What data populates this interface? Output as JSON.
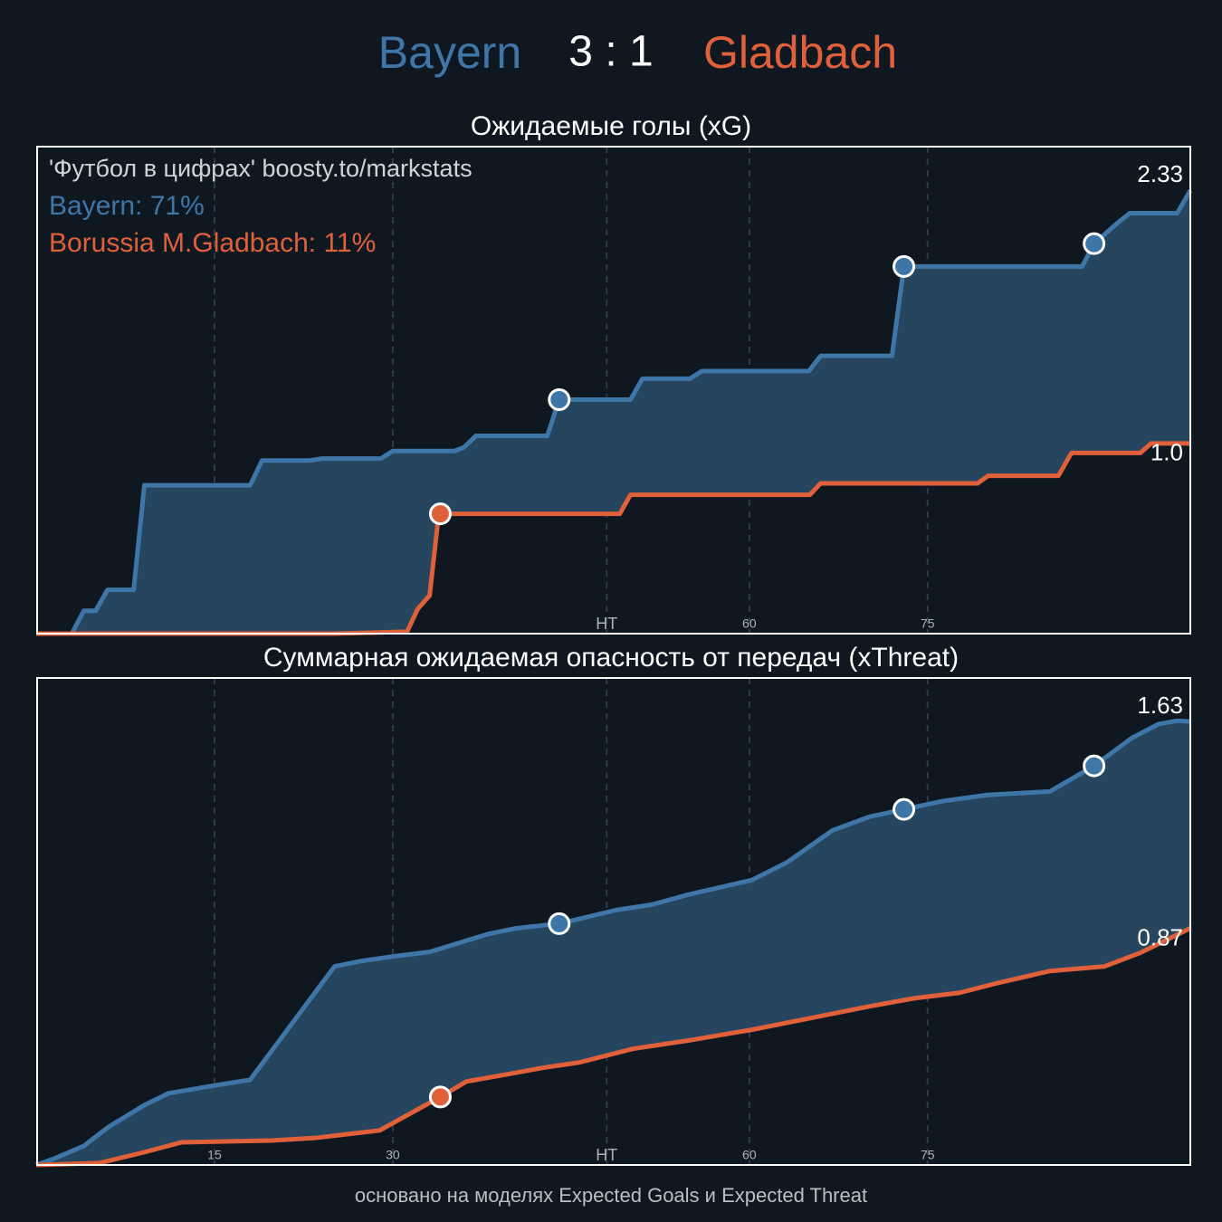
{
  "header": {
    "home": "Bayern",
    "score": "3 : 1",
    "away": "Gladbach",
    "home_color": "#3f76a8",
    "away_color": "#e0603a"
  },
  "chart_data": [
    {
      "type": "line",
      "title": "Ожидаемые голы (xG)",
      "annotations": [
        {
          "text": "'Футбол в цифрах' boosty.to/markstats",
          "color": "#cfd4d9"
        },
        {
          "text": "Bayern: 71%",
          "color": "#3f76a8"
        },
        {
          "text": "Borussia M.Gladbach: 11%",
          "color": "#e0603a"
        }
      ],
      "xlim": [
        0,
        97.1
      ],
      "ylim": [
        0,
        2.56
      ],
      "xticks": [
        15,
        30,
        {
          "value": 48,
          "label": "HT"
        },
        60,
        75
      ],
      "grid": true,
      "fill_between": true,
      "series": [
        {
          "name": "Bayern",
          "color": "#3f76a8",
          "end_label": "2.33",
          "x": [
            0,
            3,
            4,
            5,
            6,
            8.2,
            9.1,
            18,
            19,
            23,
            24,
            29,
            30,
            35.2,
            36,
            37,
            43,
            44,
            50,
            51,
            55,
            56,
            65,
            66,
            72,
            73,
            88,
            89,
            91,
            92,
            96,
            97.1
          ],
          "values": [
            0,
            0,
            0.12,
            0.12,
            0.23,
            0.23,
            0.78,
            0.78,
            0.91,
            0.91,
            0.92,
            0.92,
            0.96,
            0.96,
            0.98,
            1.04,
            1.04,
            1.23,
            1.23,
            1.34,
            1.34,
            1.38,
            1.38,
            1.46,
            1.46,
            1.93,
            1.93,
            2.05,
            2.16,
            2.21,
            2.21,
            2.33
          ],
          "goals": [
            44,
            73,
            89
          ]
        },
        {
          "name": "Gladbach",
          "color": "#e0603a",
          "end_label": "1.0",
          "x": [
            0,
            25.1,
            31.2,
            32.1,
            33.1,
            33.8,
            34,
            49.1,
            50,
            65.1,
            66,
            79.2,
            80.1,
            86,
            87.1,
            92.9,
            93.8,
            97.1
          ],
          "values": [
            0,
            0,
            0.01,
            0.13,
            0.2,
            0.59,
            0.63,
            0.63,
            0.73,
            0.73,
            0.79,
            0.79,
            0.83,
            0.83,
            0.95,
            0.95,
            1.0,
            1.0
          ],
          "goals": [
            34
          ]
        }
      ]
    },
    {
      "type": "line",
      "title": "Суммарная ожидаемая опасность от передач (xThreat)",
      "xlim": [
        0,
        97.1
      ],
      "ylim": [
        0,
        1.79
      ],
      "xticks": [
        15,
        30,
        {
          "value": 48,
          "label": "HT"
        },
        60,
        75
      ],
      "grid": true,
      "fill_between": true,
      "series": [
        {
          "name": "Bayern",
          "color": "#3f76a8",
          "end_label": "1.63",
          "x": [
            0,
            1.5,
            4,
            6.1,
            9.1,
            11.1,
            15.1,
            18,
            25.1,
            27.4,
            30.1,
            33.1,
            38.1,
            40.4,
            44,
            48.8,
            51.8,
            54.8,
            60.2,
            63.2,
            67,
            70.1,
            73,
            76.2,
            80,
            85.3,
            89,
            92.2,
            94.4,
            96,
            97.1
          ],
          "values": [
            0,
            0.023,
            0.07,
            0.14,
            0.22,
            0.263,
            0.293,
            0.313,
            0.73,
            0.75,
            0.767,
            0.783,
            0.85,
            0.87,
            0.887,
            0.937,
            0.957,
            0.993,
            1.047,
            1.113,
            1.23,
            1.28,
            1.307,
            1.337,
            1.36,
            1.373,
            1.467,
            1.57,
            1.62,
            1.633,
            1.63
          ],
          "goals": [
            44,
            73,
            89
          ]
        },
        {
          "name": "Gladbach",
          "color": "#e0603a",
          "end_label": "0.87",
          "x": [
            0,
            5.3,
            9.1,
            12.2,
            19.8,
            23.6,
            28.9,
            34,
            36.2,
            39.6,
            42.6,
            45.7,
            50.2,
            54.8,
            60.2,
            65.5,
            70.1,
            73.9,
            77.7,
            80.7,
            85.3,
            89.9,
            92.9,
            97.1
          ],
          "values": [
            0,
            0.007,
            0.047,
            0.083,
            0.09,
            0.1,
            0.127,
            0.25,
            0.307,
            0.333,
            0.357,
            0.377,
            0.427,
            0.457,
            0.497,
            0.543,
            0.583,
            0.613,
            0.633,
            0.667,
            0.713,
            0.73,
            0.78,
            0.87
          ],
          "goals": [
            34
          ]
        }
      ]
    }
  ],
  "footer": "основано на моделях Expected Goals и Expected Threat"
}
